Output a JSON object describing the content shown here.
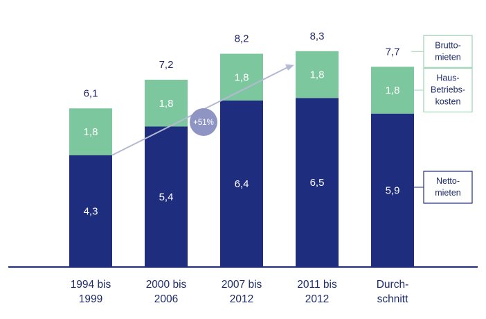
{
  "colors": {
    "netto": "#1e2d7d",
    "betriebskosten": "#7dc79e",
    "axis": "#1e2d7d",
    "text": "#1d2a6b",
    "arrow": "#b3b9d4",
    "badge": "#8f95c2",
    "legend_border_green": "#9fd3b6",
    "legend_border_blue": "#1e2d7d"
  },
  "chart_data": {
    "type": "bar",
    "stacked": true,
    "categories": [
      [
        "1994 bis",
        "1999"
      ],
      [
        "2000 bis",
        "2006"
      ],
      [
        "2007 bis",
        "2012"
      ],
      [
        "2011 bis",
        "2012"
      ],
      [
        "Durch-",
        "schnitt"
      ]
    ],
    "series": [
      {
        "key": "netto",
        "values": [
          4.3,
          5.4,
          6.4,
          6.5,
          5.9
        ],
        "labels": [
          "4,3",
          "5,4",
          "6,4",
          "6,5",
          "5,9"
        ]
      },
      {
        "key": "betriebskosten",
        "values": [
          1.8,
          1.8,
          1.8,
          1.8,
          1.8
        ],
        "labels": [
          "1,8",
          "1,8",
          "1,8",
          "1,8",
          "1,8"
        ]
      }
    ],
    "totals": [
      6.1,
      7.2,
      8.2,
      8.3,
      7.7
    ],
    "total_labels": [
      "6,1",
      "7,2",
      "8,2",
      "8,3",
      "7,7"
    ],
    "ylim": [
      0,
      8.3
    ],
    "annotation": {
      "text": "+51%",
      "from_category": 0,
      "to_category": 3
    },
    "legend": [
      {
        "key": "brutto",
        "lines": [
          "Brutto-",
          "mieten"
        ],
        "style": "line",
        "anchor": "total"
      },
      {
        "key": "betriebskosten",
        "lines": [
          "Haus-",
          "Betriebs-",
          "kosten"
        ],
        "style": "box-green",
        "anchor": "betriebskosten"
      },
      {
        "key": "netto",
        "lines": [
          "Netto-",
          "mieten"
        ],
        "style": "box-blue",
        "anchor": "netto"
      }
    ]
  }
}
